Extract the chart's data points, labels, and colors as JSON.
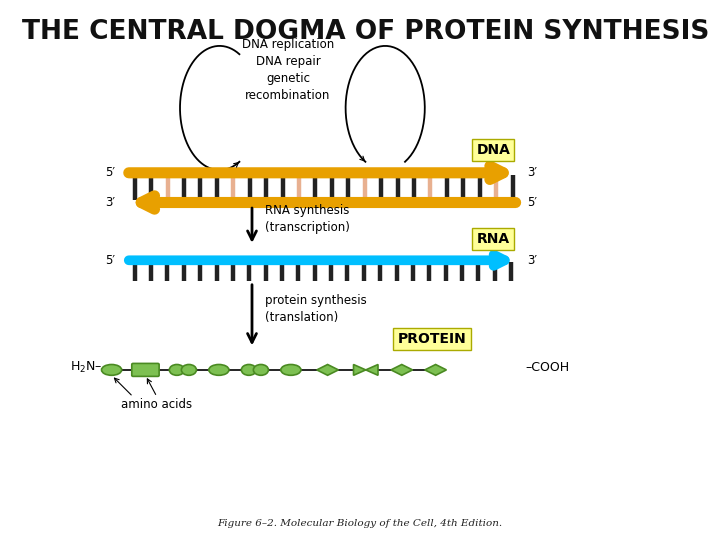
{
  "title": "THE CENTRAL DOGMA OF PROTEIN SYNTHESIS",
  "title_fontsize": 19,
  "title_fontweight": "bold",
  "background_color": "#ffffff",
  "dna_label": "DNA",
  "rna_label": "RNA",
  "protein_label": "PROTEIN",
  "label_bg": "#ffff99",
  "dna_gold": "#E8A000",
  "rna_color": "#00BFFF",
  "rung_dark": "#222222",
  "rung_pink": "#E8B090",
  "protein_color": "#7DC052",
  "protein_edge": "#4A8A22",
  "dna_replication_text": "DNA replication\nDNA repair\ngenetic\nrecombination",
  "rna_synthesis_text": "RNA synthesis\n(transcription)",
  "protein_synthesis_text": "protein synthesis\n(translation)",
  "amino_acids_text": "amino acids",
  "figure_caption": "Figure 6–2. Molecular Biology of the Cell, 4th Edition.",
  "five_prime": "5′",
  "three_prime": "3′",
  "xlim": [
    0,
    10
  ],
  "ylim": [
    0,
    10
  ]
}
